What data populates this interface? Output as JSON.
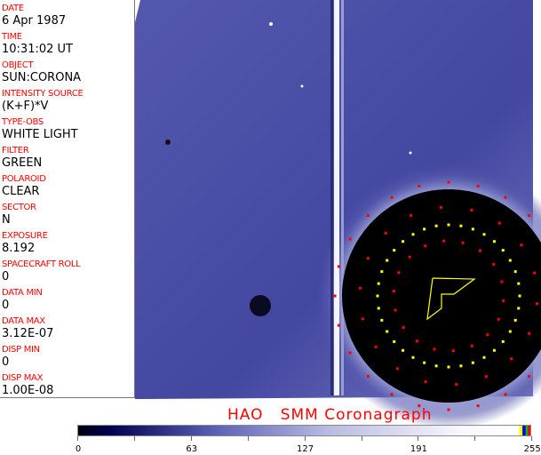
{
  "header_fields": [
    {
      "label": "DATE",
      "value": "6 Apr 1987"
    },
    {
      "label": "TIME",
      "value": "10:31:02 UT"
    },
    {
      "label": "OBJECT",
      "value": "SUN:CORONA"
    },
    {
      "label": "INTENSITY SOURCE",
      "value": "(K+F)*V"
    },
    {
      "label": "TYPE-OBS",
      "value": "WHITE LIGHT"
    },
    {
      "label": "FILTER",
      "value": "GREEN"
    },
    {
      "label": "POLAROID",
      "value": "CLEAR"
    },
    {
      "label": "SECTOR",
      "value": "N"
    },
    {
      "label": "EXPOSURE",
      "value": "8.192"
    },
    {
      "label": "SPACECRAFT ROLL",
      "value": "0"
    },
    {
      "label": "DATA MIN",
      "value": "0"
    },
    {
      "label": "DATA MAX",
      "value": "3.12E-07"
    },
    {
      "label": "DISP MIN",
      "value": "0"
    },
    {
      "label": "DISP MAX",
      "value": "1.00E-08"
    }
  ],
  "image_title": "HAO   SMM Coronagraph",
  "colorbar": {
    "tick_labels": [
      "0",
      "63",
      "127",
      "191",
      "255"
    ],
    "colors": {
      "dark": "#000010",
      "mid": "#5a5fb4",
      "light": "#ffffff",
      "top_markers": [
        "#ffff00",
        "#0000ff",
        "#00c000",
        "#ff0000"
      ]
    }
  },
  "colors": {
    "label": "#ff0000",
    "background_blue": "#4b4fa6",
    "occulter": "#000000",
    "red_markers": "#ff0000",
    "yellow_markers": "#ffff00"
  }
}
